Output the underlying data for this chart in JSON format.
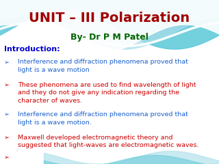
{
  "title": "UNIT – III Polarization",
  "subtitle": "By- Dr P M Patel",
  "title_color": "#a00000",
  "subtitle_color": "#006600",
  "intro_label": "Introduction:",
  "intro_color": "#0000cc",
  "bg_color": "#ffffff",
  "wave_color1": "#5bc8d8",
  "wave_color2": "#a8dde9",
  "wave_color3": "#d0eef5",
  "bullet_color_blue": "#1a5fcc",
  "bullet_color_red": "#cc0000",
  "bullets": [
    {
      "text": "Interference and diffraction phenomena proved that\nlight is a wave motion",
      "color": "#1a5fcc"
    },
    {
      "text": "These phenomena are used to find wavelength of light\nand they do not give any indication regarding the\ncharacter of waves.",
      "color": "#cc0000"
    },
    {
      "text": "Interference and diffraction phenomena proved that\nlight is a wave motion.",
      "color": "#1a5fcc"
    },
    {
      "text": "Maxwell developed electromagnetic theory and\nsuggested that light-waves are electromagnetic waves.",
      "color": "#cc0000"
    }
  ],
  "title_fontsize": 14,
  "subtitle_fontsize": 9,
  "intro_fontsize": 8,
  "bullet_fontsize": 6.8
}
